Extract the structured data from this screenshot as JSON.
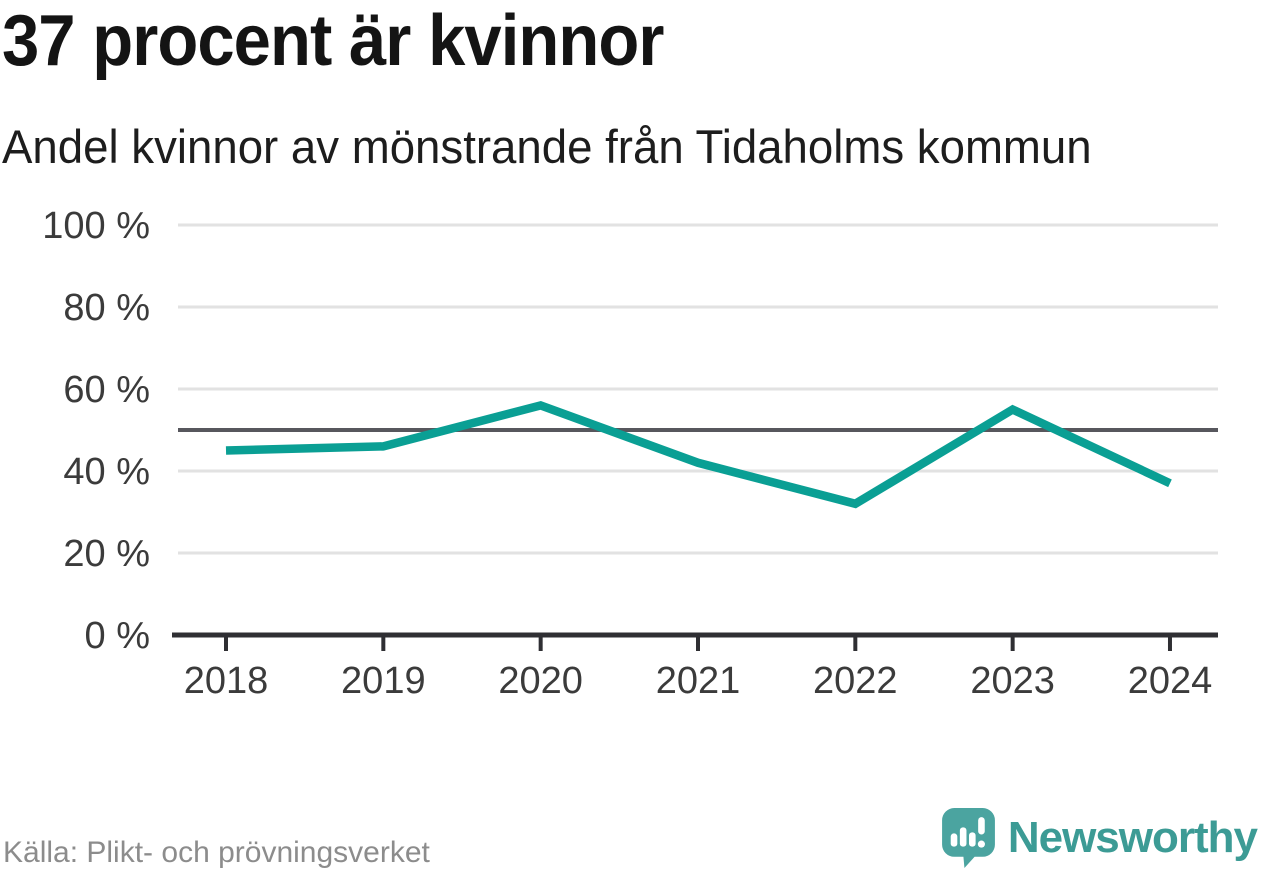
{
  "header": {
    "title": "37 procent är kvinnor",
    "subtitle": "Andel kvinnor av mönstrande från Tidaholms kommun"
  },
  "chart_data": {
    "type": "line",
    "title": "37 procent är kvinnor",
    "subtitle": "Andel kvinnor av mönstrande från Tidaholms kommun",
    "categories": [
      "2018",
      "2019",
      "2020",
      "2021",
      "2022",
      "2023",
      "2024"
    ],
    "series": [
      {
        "name": "andel-kvinnor",
        "values": [
          45,
          46,
          56,
          42,
          32,
          55,
          37
        ]
      }
    ],
    "unit": "%",
    "ylim": [
      0,
      100
    ],
    "yticks": [
      0,
      20,
      40,
      60,
      80,
      100
    ],
    "ytick_format": "{v} %",
    "reference_line_y": 50,
    "grid": true,
    "legend": "none"
  },
  "colors": {
    "accent_teal": "#0a9f94",
    "grid": "#e2e2e2",
    "reference_line": "#57575d",
    "axis": "#2f2f33",
    "tick_label": "#3b3b3b",
    "source_text": "#8c8c8c",
    "brand_text_teal": "#3c9b95",
    "brand_icon_teal": "#4ba4a0"
  },
  "footer": {
    "source": "Källa: Plikt- och prövningsverket",
    "brand_name": "Newsworthy"
  }
}
